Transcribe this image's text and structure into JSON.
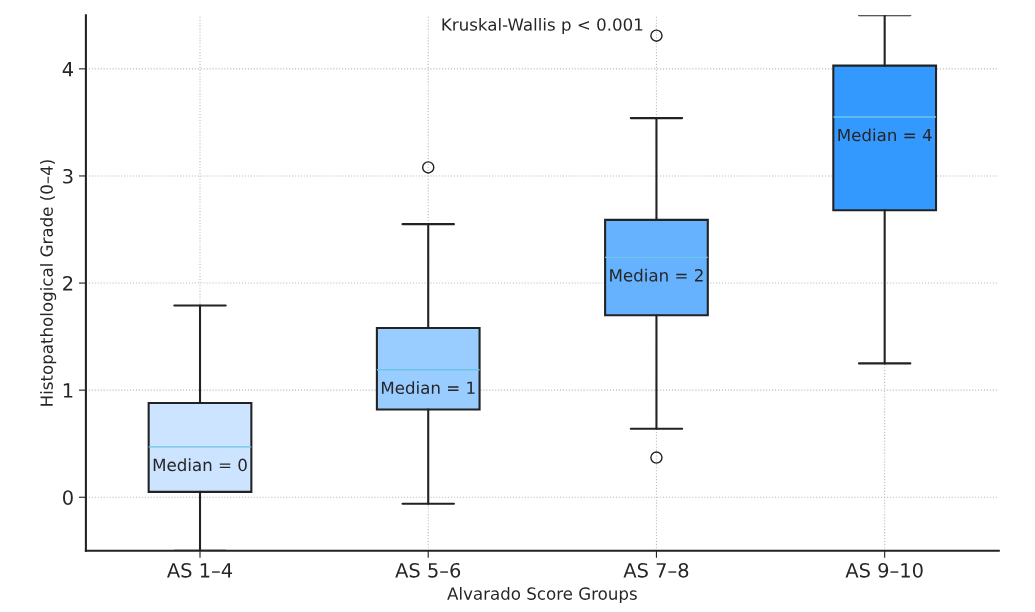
{
  "chart_data": {
    "type": "box",
    "xlabel": "Alvarado Score Groups",
    "ylabel": "Histopathological Grade (0–4)",
    "categories": [
      "AS 1–4",
      "AS 5–6",
      "AS 7–8",
      "AS 9–10"
    ],
    "colors": [
      "#cce4ff",
      "#99ccff",
      "#66b2ff",
      "#3399ff"
    ],
    "boxes": [
      {
        "low": -0.5,
        "q1": 0.05,
        "median": 0.47,
        "q3": 0.88,
        "high": 1.79
      },
      {
        "low": -0.06,
        "q1": 0.82,
        "median": 1.19,
        "q3": 1.58,
        "high": 2.55,
        "outliers": [
          3.08
        ]
      },
      {
        "low": 0.64,
        "q1": 1.7,
        "median": 2.24,
        "q3": 2.59,
        "high": 3.54,
        "outliers": [
          0.37,
          4.31
        ]
      },
      {
        "low": 1.25,
        "q1": 2.68,
        "median": 3.55,
        "q3": 4.03,
        "high": 4.5
      }
    ],
    "ylim": [
      -0.5,
      4.5
    ],
    "yticks": [
      0,
      1,
      2,
      3,
      4
    ],
    "grid": true,
    "annotations": [
      "Kruskal-Wallis p < 0.001",
      "Median = 0",
      "Median = 1",
      "Median = 2",
      "Median = 4"
    ]
  }
}
